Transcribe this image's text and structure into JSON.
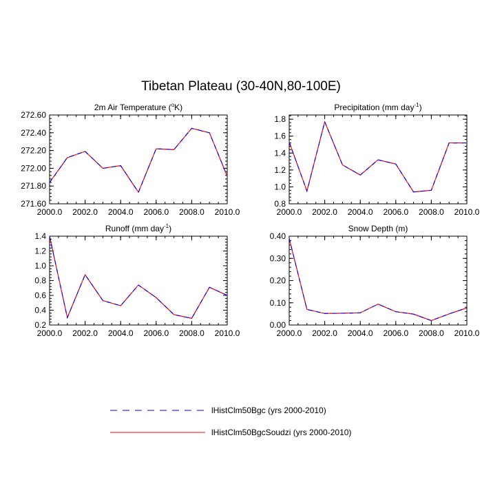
{
  "figure": {
    "title": "Tibetan Plateau (30-40N,80-100E)"
  },
  "legend": {
    "entries": [
      {
        "label": "lHistClm50Bgc (yrs 2000-2010)",
        "color": "#0000ff",
        "dash": "dashed"
      },
      {
        "label": "lHistClm50BgcSoudzi (yrs 2000-2010)",
        "color": "#ff0000",
        "dash": "solid"
      }
    ]
  },
  "chart_data": [
    {
      "type": "line",
      "title": "2m Air Temperature (°K)",
      "title_parts": {
        "pre": "2m Air Temperature (",
        "sup": "o",
        "post": "K)"
      },
      "x": [
        2000,
        2001,
        2002,
        2003,
        2004,
        2005,
        2006,
        2007,
        2008,
        2009,
        2010
      ],
      "xlim": [
        2000,
        2010
      ],
      "ylim": [
        271.6,
        272.6
      ],
      "x_ticks": [
        "2000.0",
        "2002.0",
        "2004.0",
        "2006.0",
        "2008.0",
        "2010.0"
      ],
      "y_ticks": [
        "271.60",
        "271.80",
        "272.00",
        "272.20",
        "272.40",
        "272.60"
      ],
      "series": [
        {
          "name": "lHistClm50Bgc (yrs 2000-2010)",
          "values": [
            271.84,
            272.12,
            272.19,
            272.0,
            272.03,
            271.73,
            272.22,
            272.21,
            272.45,
            272.4,
            271.91
          ]
        },
        {
          "name": "lHistClm50BgcSoudzi (yrs 2000-2010)",
          "values": [
            271.84,
            272.12,
            272.19,
            272.0,
            272.03,
            271.73,
            272.22,
            272.21,
            272.45,
            272.4,
            271.91
          ]
        }
      ]
    },
    {
      "type": "line",
      "title": "Precipitation (mm day-1)",
      "title_parts": {
        "pre": "Precipitation (mm day",
        "sup": "-1",
        "post": ")"
      },
      "x": [
        2000,
        2001,
        2002,
        2003,
        2004,
        2005,
        2006,
        2007,
        2008,
        2009,
        2010
      ],
      "xlim": [
        2000,
        2010
      ],
      "ylim": [
        0.8,
        1.85
      ],
      "x_ticks": [
        "2000.0",
        "2002.0",
        "2004.0",
        "2006.0",
        "2008.0",
        "2010.0"
      ],
      "y_ticks": [
        "0.8",
        "1.0",
        "1.2",
        "1.4",
        "1.6",
        "1.8"
      ],
      "series": [
        {
          "name": "lHistClm50Bgc (yrs 2000-2010)",
          "values": [
            1.53,
            0.95,
            1.77,
            1.26,
            1.14,
            1.32,
            1.27,
            0.94,
            0.96,
            1.52,
            1.52
          ]
        },
        {
          "name": "lHistClm50BgcSoudzi (yrs 2000-2010)",
          "values": [
            1.53,
            0.95,
            1.77,
            1.26,
            1.14,
            1.32,
            1.27,
            0.94,
            0.96,
            1.52,
            1.52
          ]
        }
      ]
    },
    {
      "type": "line",
      "title": "Runoff (mm day-1)",
      "title_parts": {
        "pre": "Runoff (mm day",
        "sup": "-1",
        "post": ")"
      },
      "x": [
        2000,
        2001,
        2002,
        2003,
        2004,
        2005,
        2006,
        2007,
        2008,
        2009,
        2010
      ],
      "xlim": [
        2000,
        2010
      ],
      "ylim": [
        0.2,
        1.4
      ],
      "x_ticks": [
        "2000.0",
        "2002.0",
        "2004.0",
        "2006.0",
        "2008.0",
        "2010.0"
      ],
      "y_ticks": [
        "0.2",
        "0.4",
        "0.6",
        "0.8",
        "1.0",
        "1.2",
        "1.4"
      ],
      "series": [
        {
          "name": "lHistClm50Bgc (yrs 2000-2010)",
          "values": [
            1.4,
            0.3,
            0.88,
            0.53,
            0.46,
            0.74,
            0.57,
            0.34,
            0.29,
            0.71,
            0.6
          ]
        },
        {
          "name": "lHistClm50BgcSoudzi (yrs 2000-2010)",
          "values": [
            1.4,
            0.3,
            0.88,
            0.53,
            0.46,
            0.74,
            0.57,
            0.34,
            0.29,
            0.71,
            0.6
          ]
        }
      ]
    },
    {
      "type": "line",
      "title": "Snow Depth (m)",
      "title_parts": {
        "pre": "Snow Depth (m)",
        "sup": "",
        "post": ""
      },
      "x": [
        2000,
        2001,
        2002,
        2003,
        2004,
        2005,
        2006,
        2007,
        2008,
        2009,
        2010
      ],
      "xlim": [
        2000,
        2010
      ],
      "ylim": [
        0.0,
        0.4
      ],
      "x_ticks": [
        "2000.0",
        "2002.0",
        "2004.0",
        "2006.0",
        "2008.0",
        "2010.0"
      ],
      "y_ticks": [
        "0.00",
        "0.10",
        "0.20",
        "0.30",
        "0.40"
      ],
      "series": [
        {
          "name": "lHistClm50Bgc (yrs 2000-2010)",
          "values": [
            0.39,
            0.07,
            0.052,
            0.053,
            0.055,
            0.094,
            0.06,
            0.049,
            0.02,
            0.05,
            0.077
          ]
        },
        {
          "name": "lHistClm50BgcSoudzi (yrs 2000-2010)",
          "values": [
            0.39,
            0.07,
            0.052,
            0.053,
            0.055,
            0.094,
            0.06,
            0.049,
            0.02,
            0.05,
            0.077
          ]
        }
      ]
    }
  ]
}
